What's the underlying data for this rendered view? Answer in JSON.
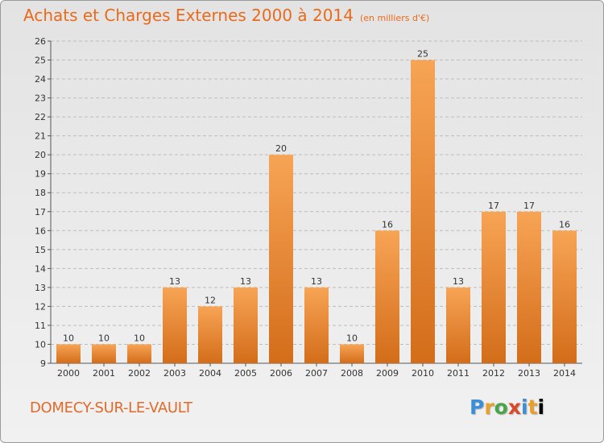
{
  "title": "Achats et Charges Externes 2000 à 2014",
  "unit": "(en milliers d'€)",
  "town": "DOMECY-SUR-LE-VAULT",
  "logo": "Proxiti",
  "colors": {
    "title": "#ea6a1c",
    "bar_light": "#f7a455",
    "bar_dark": "#d36d1a",
    "grid": "#bdbdbd"
  },
  "chart_data": {
    "type": "bar",
    "categories": [
      "2000",
      "2001",
      "2002",
      "2003",
      "2004",
      "2005",
      "2006",
      "2007",
      "2008",
      "2009",
      "2010",
      "2011",
      "2012",
      "2013",
      "2014"
    ],
    "values": [
      10,
      10,
      10,
      13,
      12,
      13,
      20,
      13,
      10,
      16,
      25,
      13,
      17,
      17,
      16
    ],
    "ylim": [
      9,
      26
    ],
    "yticks": [
      9,
      10,
      11,
      12,
      13,
      14,
      15,
      16,
      17,
      18,
      19,
      20,
      21,
      22,
      23,
      24,
      25,
      26
    ],
    "grid": true,
    "data_labels": true,
    "legend": "none"
  }
}
